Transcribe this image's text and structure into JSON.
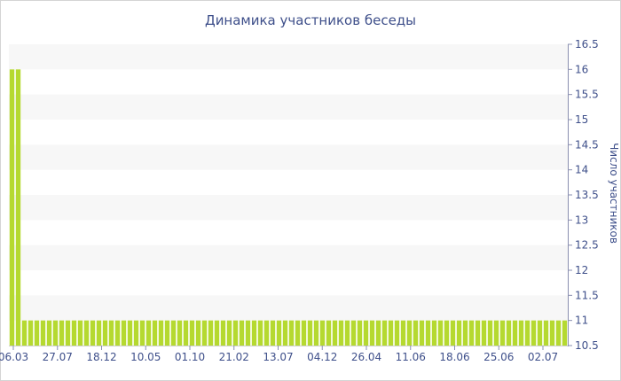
{
  "chart_data": {
    "type": "bar",
    "title": "Динамика участников беседы",
    "ylabel": "Число участников",
    "xlabel": "",
    "ylim": [
      10.5,
      16.5
    ],
    "yticks": [
      "10.5",
      "11",
      "11.5",
      "12",
      "12.5",
      "13",
      "13.5",
      "14",
      "14.5",
      "15",
      "15.5",
      "16",
      "16.5"
    ],
    "x_tick_labels": [
      "06.03",
      "27.07",
      "18.12",
      "10.05",
      "01.10",
      "21.02",
      "13.07",
      "04.12",
      "26.04",
      "11.06",
      "18.06",
      "25.06",
      "02.07"
    ],
    "y_axis_position": "right",
    "grid": "horizontal bands",
    "values": [
      16,
      16,
      11,
      11,
      11,
      11,
      11,
      11,
      11,
      11,
      11,
      11,
      11,
      11,
      11,
      11,
      11,
      11,
      11,
      11,
      11,
      11,
      11,
      11,
      11,
      11,
      11,
      11,
      11,
      11,
      11,
      11,
      11,
      11,
      11,
      11,
      11,
      11,
      11,
      11,
      11,
      11,
      11,
      11,
      11,
      11,
      11,
      11,
      11,
      11,
      11,
      11,
      11,
      11,
      11,
      11,
      11,
      11,
      11,
      11,
      11,
      11,
      11,
      11,
      11,
      11,
      11,
      11,
      11,
      11,
      11,
      11,
      11,
      11,
      11,
      11,
      11,
      11,
      11,
      11,
      11,
      11,
      11,
      11,
      11,
      11,
      11,
      11,
      11,
      11
    ],
    "bar_color": "#b5d930",
    "band_color": "#f7f7f7",
    "text_color": "#3e4f8a"
  }
}
